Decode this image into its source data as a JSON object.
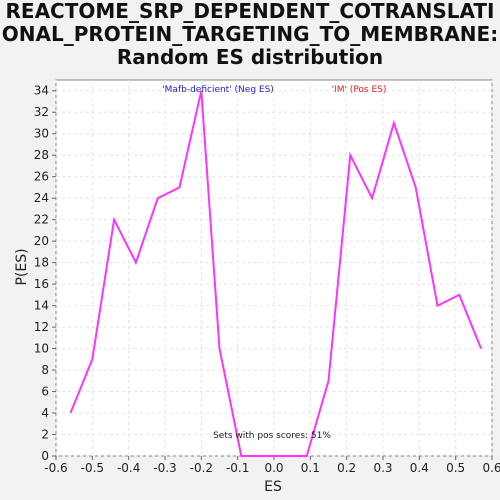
{
  "chart_data": {
    "type": "line",
    "title_lines": [
      "REACTOME_SRP_DEPENDENT_COTRANSLATI",
      "ONAL_PROTEIN_TARGETING_TO_MEMBRANE:",
      "Random ES distribution"
    ],
    "xlabel": "ES",
    "ylabel": "P(ES)",
    "xlim": [
      -0.6,
      0.6
    ],
    "ylim": [
      0,
      35
    ],
    "xticks": [
      "-0.6",
      "-0.5",
      "-0.4",
      "-0.3",
      "-0.2",
      "-0.1",
      "0.0",
      "0.1",
      "0.2",
      "0.3",
      "0.4",
      "0.5",
      "0.6"
    ],
    "yticks": [
      "0",
      "2",
      "4",
      "6",
      "8",
      "10",
      "12",
      "14",
      "16",
      "18",
      "20",
      "22",
      "24",
      "26",
      "28",
      "30",
      "32",
      "34"
    ],
    "grid": true,
    "series": [
      {
        "color": "#ff33ff",
        "x": [
          -0.56,
          -0.5,
          -0.44,
          -0.38,
          -0.32,
          -0.26,
          -0.2,
          -0.15,
          -0.09,
          -0.03,
          0.03,
          0.09,
          0.15,
          0.21,
          0.27,
          0.33,
          0.39,
          0.45,
          0.51,
          0.57
        ],
        "y": [
          4,
          9,
          22,
          18,
          24,
          25,
          34,
          10,
          0,
          0,
          0,
          0,
          7,
          28,
          24,
          31,
          25,
          14,
          15,
          10
        ]
      }
    ],
    "annotations": {
      "neg": {
        "text": "'Mafb-deficient' (Neg ES)",
        "color": "#2222cc"
      },
      "pos": {
        "text": "'IM' (Pos ES)",
        "color": "#dd2222"
      },
      "footer": {
        "text": "Sets with pos scores: 51%",
        "color": "#222222"
      }
    }
  }
}
